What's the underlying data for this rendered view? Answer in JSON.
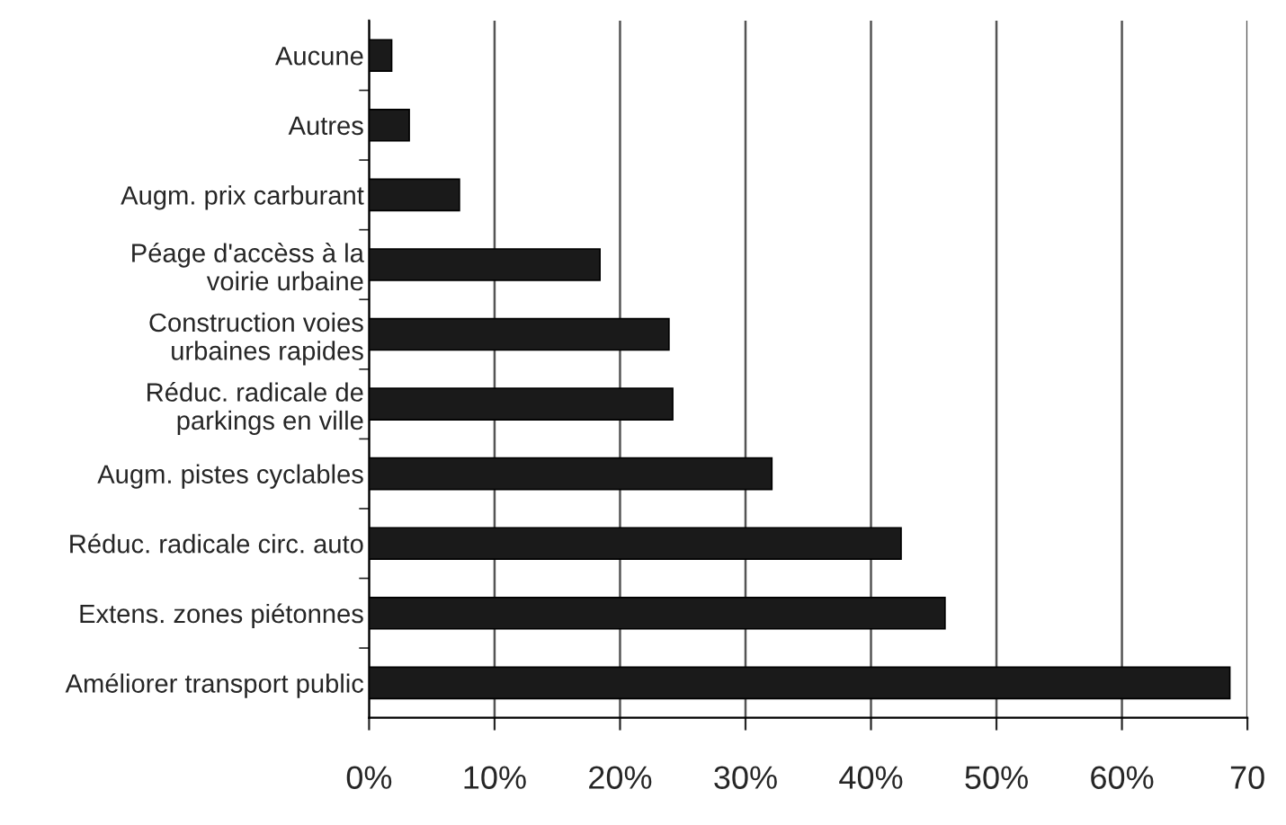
{
  "chart_data": {
    "type": "bar",
    "orientation": "horizontal",
    "categories": [
      "Aucune",
      "Autres",
      "Augm. prix carburant",
      "Péage d'accèss à la\nvoirie urbaine",
      "Construction voies\nurbaines rapides",
      "Réduc. radicale de\nparkings en ville",
      "Augm. pistes cyclables",
      "Réduc. radicale circ. auto",
      "Extens. zones piétonnes",
      "Améliorer transport public"
    ],
    "values": [
      1.8,
      3.2,
      7.2,
      18.4,
      23.9,
      24.2,
      32.1,
      42.4,
      45.9,
      68.6
    ],
    "color": "#1a1a1a",
    "xlim": [
      0,
      70
    ],
    "xticks": [
      {
        "value": 0,
        "label": "0%"
      },
      {
        "value": 10,
        "label": "10%"
      },
      {
        "value": 20,
        "label": "20%"
      },
      {
        "value": 30,
        "label": "30%"
      },
      {
        "value": 40,
        "label": "40%"
      },
      {
        "value": 50,
        "label": "50%"
      },
      {
        "value": 60,
        "label": "60%"
      },
      70
    ],
    "grid": "x",
    "legend": false
  }
}
